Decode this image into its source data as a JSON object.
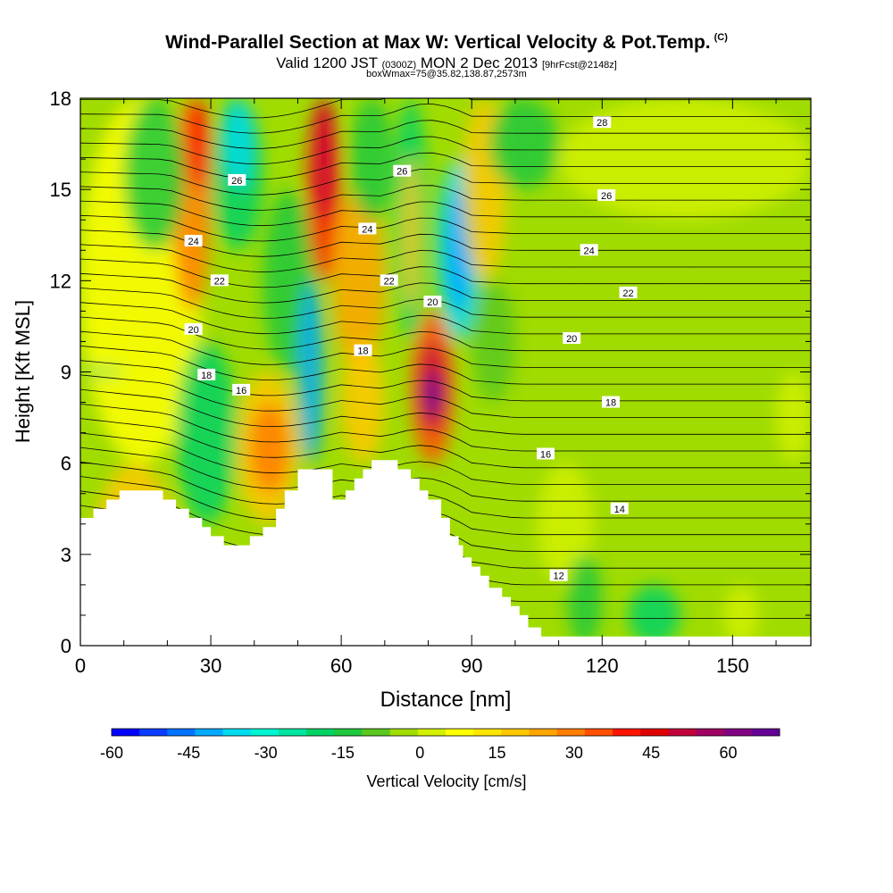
{
  "chart_data": {
    "type": "heatmap",
    "title": "Wind-Parallel Section at Max W: Vertical Velocity & Pot.Temp.",
    "title_mark": "(C)",
    "subtitle": {
      "valid": "Valid 1200 JST",
      "zulu": "(0300Z)",
      "date": "MON 2 Dec 2013",
      "forecast": "[9hrFcst@2148z]"
    },
    "subtitle2": "boxWmax=75@35.82,138.87,2573m",
    "xlabel": "Distance [nm]",
    "ylabel": "Height [Kft MSL]",
    "xlim": [
      0,
      168
    ],
    "ylim": [
      0,
      18
    ],
    "x_ticks": [
      0,
      30,
      60,
      90,
      120,
      150
    ],
    "y_ticks": [
      0,
      3,
      6,
      9,
      12,
      15,
      18
    ],
    "colorbar": {
      "label": "Vertical Velocity [cm/s]",
      "tick_labels": [
        "-60",
        "-45",
        "-30",
        "-15",
        "0",
        "15",
        "30",
        "45",
        "60"
      ],
      "range": [
        -60,
        70
      ],
      "colors": [
        "#0000ff",
        "#0a3cff",
        "#0073ff",
        "#00aaff",
        "#00dcf0",
        "#00f5d2",
        "#00e6a0",
        "#00d264",
        "#1ec83c",
        "#5ac81e",
        "#a0dc00",
        "#d2f000",
        "#ffff00",
        "#ffe600",
        "#ffc800",
        "#ffa500",
        "#ff7d00",
        "#ff5000",
        "#ff1400",
        "#e10000",
        "#c3003c",
        "#a00064",
        "#820082",
        "#640096"
      ]
    },
    "contours": {
      "variable": "Potential temperature",
      "labels": [
        {
          "text": "26",
          "x": 36,
          "y": 15.3
        },
        {
          "text": "24",
          "x": 26,
          "y": 13.3
        },
        {
          "text": "22",
          "x": 32,
          "y": 12.0
        },
        {
          "text": "20",
          "x": 26,
          "y": 10.4
        },
        {
          "text": "18",
          "x": 29,
          "y": 8.9
        },
        {
          "text": "16",
          "x": 37,
          "y": 8.4
        },
        {
          "text": "26",
          "x": 74,
          "y": 15.6
        },
        {
          "text": "24",
          "x": 66,
          "y": 13.7
        },
        {
          "text": "22",
          "x": 71,
          "y": 12.0
        },
        {
          "text": "20",
          "x": 81,
          "y": 11.3
        },
        {
          "text": "18",
          "x": 65,
          "y": 9.7
        },
        {
          "text": "28",
          "x": 120,
          "y": 17.2
        },
        {
          "text": "26",
          "x": 121,
          "y": 14.8
        },
        {
          "text": "24",
          "x": 117,
          "y": 13.0
        },
        {
          "text": "22",
          "x": 126,
          "y": 11.6
        },
        {
          "text": "20",
          "x": 113,
          "y": 10.1
        },
        {
          "text": "18",
          "x": 122,
          "y": 8.0
        },
        {
          "text": "16",
          "x": 107,
          "y": 6.3
        },
        {
          "text": "14",
          "x": 124,
          "y": 4.5
        },
        {
          "text": "12",
          "x": 110,
          "y": 2.3
        }
      ]
    },
    "terrain_kft": [
      [
        0,
        4.2
      ],
      [
        3,
        4.2
      ],
      [
        3,
        4.5
      ],
      [
        6,
        4.5
      ],
      [
        6,
        4.8
      ],
      [
        9,
        4.8
      ],
      [
        9,
        5.1
      ],
      [
        19,
        5.1
      ],
      [
        19,
        4.8
      ],
      [
        22,
        4.8
      ],
      [
        22,
        4.5
      ],
      [
        25,
        4.5
      ],
      [
        25,
        4.2
      ],
      [
        28,
        4.2
      ],
      [
        28,
        3.9
      ],
      [
        30,
        3.9
      ],
      [
        30,
        3.6
      ],
      [
        33,
        3.6
      ],
      [
        33,
        3.3
      ],
      [
        39,
        3.3
      ],
      [
        39,
        3.6
      ],
      [
        42,
        3.6
      ],
      [
        42,
        3.9
      ],
      [
        45,
        3.9
      ],
      [
        45,
        4.5
      ],
      [
        47,
        4.5
      ],
      [
        47,
        5.1
      ],
      [
        50,
        5.1
      ],
      [
        50,
        5.8
      ],
      [
        58,
        5.8
      ],
      [
        58,
        4.8
      ],
      [
        61,
        4.8
      ],
      [
        61,
        5.1
      ],
      [
        63,
        5.1
      ],
      [
        63,
        5.5
      ],
      [
        65,
        5.5
      ],
      [
        65,
        5.8
      ],
      [
        67,
        5.8
      ],
      [
        67,
        6.1
      ],
      [
        73,
        6.1
      ],
      [
        73,
        5.8
      ],
      [
        76,
        5.8
      ],
      [
        76,
        5.5
      ],
      [
        78,
        5.5
      ],
      [
        78,
        5.1
      ],
      [
        80,
        5.1
      ],
      [
        80,
        4.8
      ],
      [
        83,
        4.8
      ],
      [
        83,
        4.2
      ],
      [
        85,
        4.2
      ],
      [
        85,
        3.6
      ],
      [
        87,
        3.6
      ],
      [
        87,
        3.3
      ],
      [
        88,
        3.3
      ],
      [
        88,
        2.9
      ],
      [
        90,
        2.9
      ],
      [
        90,
        2.6
      ],
      [
        92,
        2.6
      ],
      [
        92,
        2.3
      ],
      [
        94,
        2.3
      ],
      [
        94,
        1.9
      ],
      [
        97,
        1.9
      ],
      [
        97,
        1.6
      ],
      [
        99,
        1.6
      ],
      [
        99,
        1.3
      ],
      [
        101,
        1.3
      ],
      [
        101,
        1.0
      ],
      [
        103,
        1.0
      ],
      [
        103,
        0.6
      ],
      [
        106,
        0.6
      ],
      [
        106,
        0.3
      ],
      [
        168,
        0.3
      ]
    ]
  }
}
